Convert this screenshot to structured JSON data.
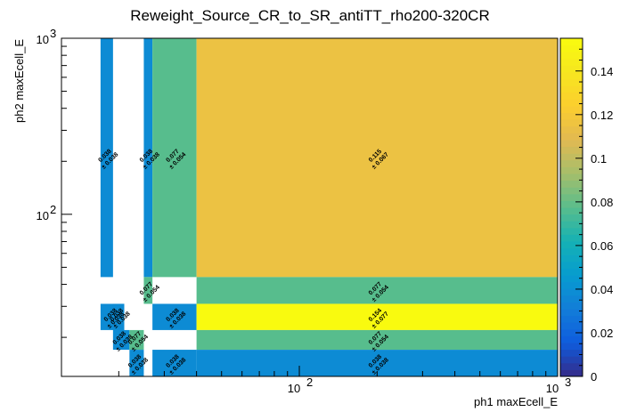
{
  "chart_data": {
    "type": "heatmap",
    "title": "Reweight_Source_CR_to_SR_antiTT_rho200-320CR",
    "xlabel": "ph1 maxEcell_E",
    "ylabel": "ph2 maxEcell_E",
    "x_scale": "log",
    "y_scale": "log",
    "xlim": [
      12,
      1000
    ],
    "ylim": [
      12,
      1000
    ],
    "x_tick_labels": [
      {
        "base": "10",
        "exp": "2",
        "value": 100
      },
      {
        "base": "10",
        "exp": "3",
        "value": 1000
      }
    ],
    "y_tick_labels": [
      {
        "base": "10",
        "exp": "2",
        "value": 100
      },
      {
        "base": "10",
        "exp": "3",
        "value": 1000
      }
    ],
    "colorbar": {
      "range": [
        0,
        0.155
      ],
      "ticks": [
        "0",
        "0.02",
        "0.04",
        "0.06",
        "0.08",
        "0.1",
        "0.12",
        "0.14"
      ],
      "tick_values": [
        0,
        0.02,
        0.04,
        0.06,
        0.08,
        0.1,
        0.12,
        0.14
      ]
    },
    "cells": [
      {
        "x": [
          17,
          19
        ],
        "y": [
          44,
          1000
        ],
        "value": 0.038,
        "label": "0.038",
        "err": "± 0.038"
      },
      {
        "x": [
          25,
          27
        ],
        "y": [
          44,
          1000
        ],
        "value": 0.038,
        "label": "0.038",
        "err": "± 0.038"
      },
      {
        "x": [
          27,
          40
        ],
        "y": [
          44,
          1000
        ],
        "value": 0.077,
        "label": "0.077",
        "err": "± 0.054"
      },
      {
        "x": [
          40,
          1000
        ],
        "y": [
          44,
          1000
        ],
        "value": 0.115,
        "label": "0.115",
        "err": "± 0.067"
      },
      {
        "x": [
          25,
          27
        ],
        "y": [
          31,
          44
        ],
        "value": 0.077,
        "label": "0.077",
        "err": "± 0.054"
      },
      {
        "x": [
          40,
          1000
        ],
        "y": [
          31,
          44
        ],
        "value": 0.077,
        "label": "0.077",
        "err": "± 0.054"
      },
      {
        "x": [
          17,
          21
        ],
        "y": [
          22,
          31
        ],
        "value": 0.038,
        "label": "0.038",
        "err": "± 0.038"
      },
      {
        "x": [
          19,
          21
        ],
        "y": [
          22,
          31
        ],
        "value": 0.038,
        "label": "0.038",
        "err": "± 0.038"
      },
      {
        "x": [
          27,
          40
        ],
        "y": [
          22,
          31
        ],
        "value": 0.038,
        "label": "0.038",
        "err": "± 0.038"
      },
      {
        "x": [
          40,
          1000
        ],
        "y": [
          22,
          31
        ],
        "value": 0.154,
        "label": "0.154",
        "err": "± 0.077"
      },
      {
        "x": [
          19,
          22
        ],
        "y": [
          17,
          22
        ],
        "value": 0.038,
        "label": "0.038",
        "err": "± 0.038"
      },
      {
        "x": [
          22,
          25
        ],
        "y": [
          17,
          22
        ],
        "value": 0.077,
        "label": "0.077",
        "err": "± 0.054"
      },
      {
        "x": [
          40,
          1000
        ],
        "y": [
          17,
          22
        ],
        "value": 0.077,
        "label": "0.077",
        "err": "± 0.054"
      },
      {
        "x": [
          22,
          25
        ],
        "y": [
          12,
          17
        ],
        "value": 0.038,
        "label": "0.038",
        "err": "± 0.038"
      },
      {
        "x": [
          27,
          40
        ],
        "y": [
          12,
          17
        ],
        "value": 0.038,
        "label": "0.038",
        "err": "± 0.038"
      },
      {
        "x": [
          40,
          1000
        ],
        "y": [
          12,
          17
        ],
        "value": 0.038,
        "label": "0.038",
        "err": "± 0.038"
      }
    ],
    "grid": false,
    "legend": "none"
  }
}
